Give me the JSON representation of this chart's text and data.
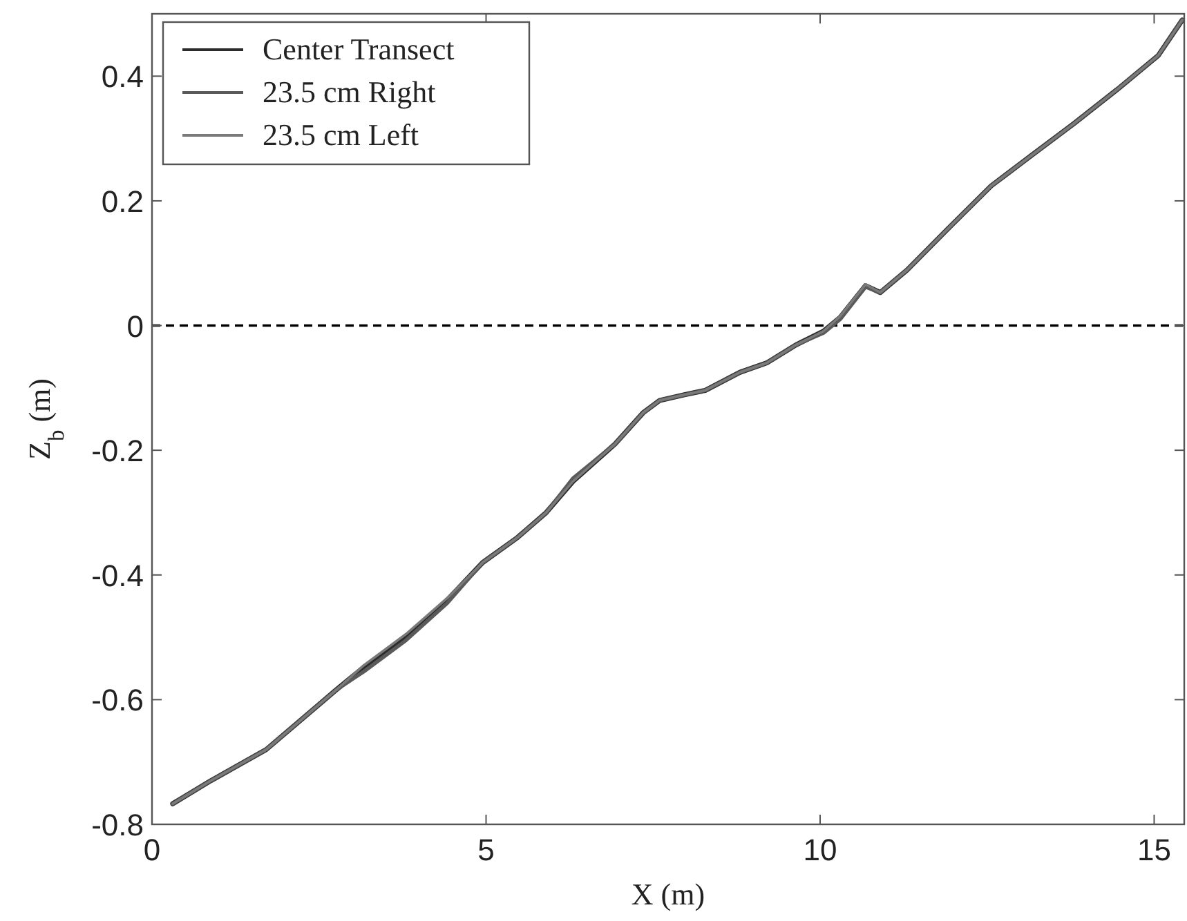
{
  "chart_data": {
    "type": "line",
    "xlabel": "X (m)",
    "ylabel": "Z$_{b}$ (m)",
    "xlim": [
      0,
      15.45
    ],
    "ylim": [
      -0.8,
      0.5
    ],
    "xticks": [
      0,
      5,
      10,
      15
    ],
    "yticks": [
      -0.8,
      -0.6,
      -0.4,
      -0.2,
      0,
      0.2,
      0.4
    ],
    "legend": "top left",
    "line_style": "solid",
    "ref_lines": [
      {
        "axis": "y",
        "value": 0,
        "line_style": "dashed",
        "color": "#000000"
      }
    ],
    "x": [
      0.31,
      0.88,
      1.71,
      2.75,
      3.17,
      3.8,
      4.42,
      4.95,
      5.47,
      5.9,
      6.3,
      6.93,
      7.35,
      7.6,
      7.97,
      8.28,
      8.8,
      9.2,
      9.64,
      10.05,
      10.3,
      10.68,
      10.9,
      11.3,
      11.93,
      12.56,
      13.19,
      13.8,
      14.44,
      15.06,
      15.42
    ],
    "series": [
      {
        "name": "Center Transect",
        "color": "#2b2b2b",
        "values": [
          -0.767,
          -0.73,
          -0.68,
          -0.585,
          -0.548,
          -0.5,
          -0.44,
          -0.38,
          -0.34,
          -0.3,
          -0.25,
          -0.19,
          -0.14,
          -0.12,
          -0.111,
          -0.104,
          -0.075,
          -0.06,
          -0.031,
          -0.009,
          0.013,
          0.064,
          0.053,
          0.089,
          0.157,
          0.224,
          0.275,
          0.324,
          0.378,
          0.433,
          0.49
        ]
      },
      {
        "name": "23.5 cm Right",
        "color": "#5a5a5a",
        "values": [
          -0.767,
          -0.73,
          -0.68,
          -0.585,
          -0.555,
          -0.505,
          -0.445,
          -0.38,
          -0.34,
          -0.3,
          -0.245,
          -0.19,
          -0.14,
          -0.12,
          -0.111,
          -0.104,
          -0.075,
          -0.06,
          -0.031,
          -0.012,
          0.01,
          0.062,
          0.053,
          0.089,
          0.157,
          0.224,
          0.275,
          0.324,
          0.378,
          0.433,
          0.49
        ]
      },
      {
        "name": "23.5 cm Left",
        "color": "#7a7a7a",
        "values": [
          -0.767,
          -0.73,
          -0.68,
          -0.585,
          -0.545,
          -0.495,
          -0.437,
          -0.38,
          -0.34,
          -0.3,
          -0.25,
          -0.19,
          -0.14,
          -0.12,
          -0.111,
          -0.104,
          -0.075,
          -0.06,
          -0.031,
          -0.009,
          0.015,
          0.066,
          0.053,
          0.089,
          0.157,
          0.224,
          0.275,
          0.324,
          0.378,
          0.433,
          0.49
        ]
      }
    ]
  }
}
